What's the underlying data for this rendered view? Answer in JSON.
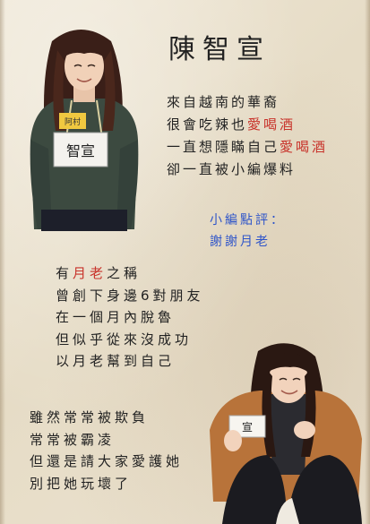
{
  "title": "陳智宣",
  "intro": {
    "line1": "來自越南的華裔",
    "line2_a": "很會吃辣也",
    "line2_b": "愛喝酒",
    "line3_a": "一直想隱瞞自己",
    "line3_b": "愛喝酒",
    "line4": "卻一直被小編爆料"
  },
  "comment": {
    "label": "小編點評：",
    "text": "謝謝月老"
  },
  "story1": {
    "line1_a": "有",
    "line1_b": "月老",
    "line1_c": "之稱",
    "line2": "曾創下身邊6對朋友",
    "line3": "在一個月內脫魯",
    "line4": "但似乎從來沒成功",
    "line5": "以月老幫到自己"
  },
  "story2": {
    "line1": "雖然常常被欺負",
    "line2": "常常被霸凌",
    "line3": "但還是請大家愛護她",
    "line4": "別把她玩壞了"
  },
  "photo1": {
    "badge_text": "智宣",
    "tag_text": "阿村"
  },
  "photo2": {
    "card_text": "宣"
  },
  "colors": {
    "red": "#c8322a",
    "blue": "#2f55c9",
    "text": "#222222"
  }
}
